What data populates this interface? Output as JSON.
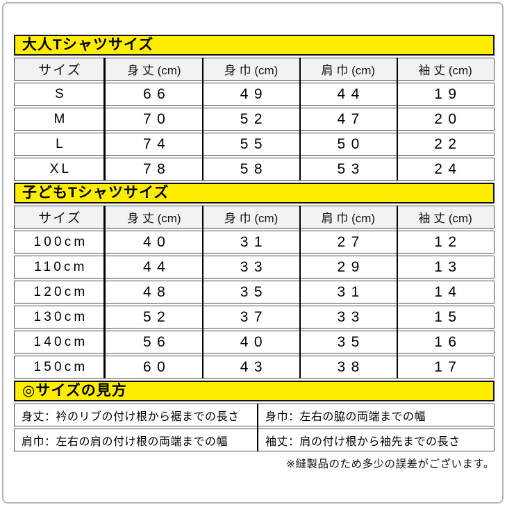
{
  "columns": [
    "サイズ",
    "身 丈 (cm)",
    "身 巾 (cm)",
    "肩 巾 (cm)",
    "袖 丈 (cm)"
  ],
  "adult": {
    "title": "大人Tシャツサイズ",
    "rows": [
      [
        "S",
        "66",
        "49",
        "44",
        "19"
      ],
      [
        "M",
        "70",
        "52",
        "47",
        "20"
      ],
      [
        "L",
        "74",
        "55",
        "50",
        "22"
      ],
      [
        "XL",
        "78",
        "58",
        "53",
        "24"
      ]
    ]
  },
  "kids": {
    "title": "子どもTシャツサイズ",
    "rows": [
      [
        "100cm",
        "40",
        "31",
        "27",
        "12"
      ],
      [
        "110cm",
        "44",
        "33",
        "29",
        "13"
      ],
      [
        "120cm",
        "48",
        "35",
        "31",
        "14"
      ],
      [
        "130cm",
        "52",
        "37",
        "33",
        "15"
      ],
      [
        "140cm",
        "56",
        "40",
        "35",
        "16"
      ],
      [
        "150cm",
        "60",
        "43",
        "38",
        "17"
      ]
    ]
  },
  "legend": {
    "title": "◎サイズの見方",
    "rows": [
      [
        "身丈：衿のリブの付け根から裾までの長さ",
        "身巾：左右の脇の両端までの幅"
      ],
      [
        "肩巾：左右の肩の付け根の両端までの幅",
        "袖丈：肩の付け根から袖先までの長さ"
      ]
    ]
  },
  "footer_note": "※縫製品のため多少の誤差がございます。",
  "colors": {
    "highlight_yellow": "#ffed00",
    "header_row_gray": "#f2f2f2",
    "grid_line_black": "#000000",
    "row_border_gray": "#4a4a4a",
    "frame_gray": "#b4b4b4"
  }
}
